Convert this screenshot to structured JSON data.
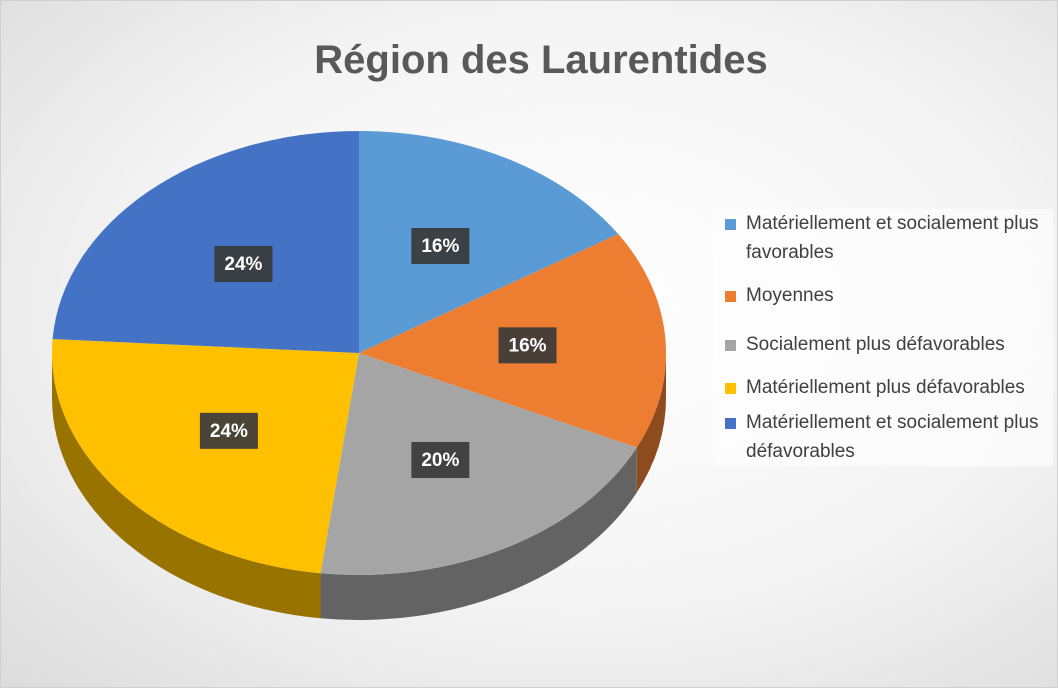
{
  "chart_data": {
    "type": "pie",
    "title": "Région des Laurentides",
    "categories": [
      "Matériellement et socialement plus favorables",
      "Moyennes",
      "Socialement plus défavorables",
      "Matériellement plus défavorables",
      "Matériellement et socialement plus défavorables"
    ],
    "values": [
      16,
      16,
      20,
      24,
      24
    ],
    "value_labels": [
      "16%",
      "16%",
      "20%",
      "24%",
      "24%"
    ],
    "colors": [
      "#5b9bd5",
      "#ed7d31",
      "#a5a5a5",
      "#ffc000",
      "#4472c4"
    ],
    "legend": "right"
  }
}
